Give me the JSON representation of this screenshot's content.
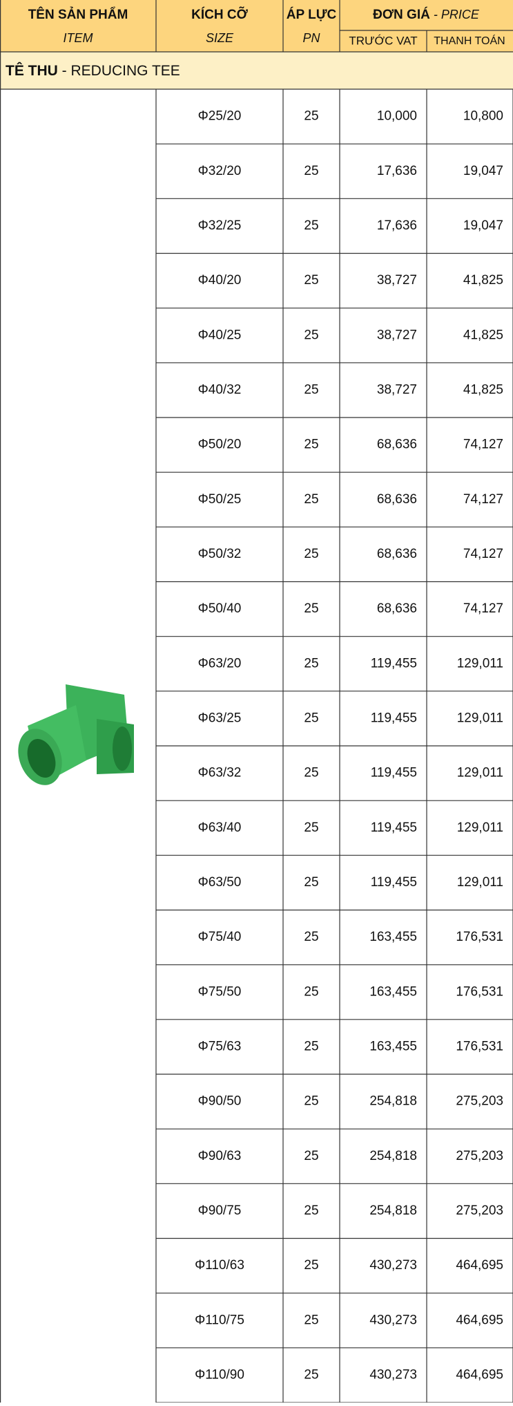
{
  "header": {
    "item": {
      "vi": "TÊN SẢN PHẨM",
      "en": "ITEM"
    },
    "size": {
      "vi": "KÍCH CỠ",
      "en": "SIZE"
    },
    "pressure": {
      "vi": "ÁP LỰC",
      "en": "PN"
    },
    "price": {
      "vi": "ĐƠN GIÁ",
      "en": " - PRICE",
      "before_vat": "TRƯỚC VAT",
      "payment": "THANH TOÁN"
    }
  },
  "section": {
    "vi": "TÊ THU",
    "en": " - REDUCING TEE"
  },
  "table": {
    "rows": [
      [
        "Φ25/20",
        "25",
        "10,000",
        "10,800"
      ],
      [
        "Φ32/20",
        "25",
        "17,636",
        "19,047"
      ],
      [
        "Φ32/25",
        "25",
        "17,636",
        "19,047"
      ],
      [
        "Φ40/20",
        "25",
        "38,727",
        "41,825"
      ],
      [
        "Φ40/25",
        "25",
        "38,727",
        "41,825"
      ],
      [
        "Φ40/32",
        "25",
        "38,727",
        "41,825"
      ],
      [
        "Φ50/20",
        "25",
        "68,636",
        "74,127"
      ],
      [
        "Φ50/25",
        "25",
        "68,636",
        "74,127"
      ],
      [
        "Φ50/32",
        "25",
        "68,636",
        "74,127"
      ],
      [
        "Φ50/40",
        "25",
        "68,636",
        "74,127"
      ],
      [
        "Φ63/20",
        "25",
        "119,455",
        "129,011"
      ],
      [
        "Φ63/25",
        "25",
        "119,455",
        "129,011"
      ],
      [
        "Φ63/32",
        "25",
        "119,455",
        "129,011"
      ],
      [
        "Φ63/40",
        "25",
        "119,455",
        "129,011"
      ],
      [
        "Φ63/50",
        "25",
        "119,455",
        "129,011"
      ],
      [
        "Φ75/40",
        "25",
        "163,455",
        "176,531"
      ],
      [
        "Φ75/50",
        "25",
        "163,455",
        "176,531"
      ],
      [
        "Φ75/63",
        "25",
        "163,455",
        "176,531"
      ],
      [
        "Φ90/50",
        "25",
        "254,818",
        "275,203"
      ],
      [
        "Φ90/63",
        "25",
        "254,818",
        "275,203"
      ],
      [
        "Φ90/75",
        "25",
        "254,818",
        "275,203"
      ],
      [
        "Φ110/63",
        "25",
        "430,273",
        "464,695"
      ],
      [
        "Φ110/75",
        "25",
        "430,273",
        "464,695"
      ],
      [
        "Φ110/90",
        "25",
        "430,273",
        "464,695"
      ]
    ]
  }
}
